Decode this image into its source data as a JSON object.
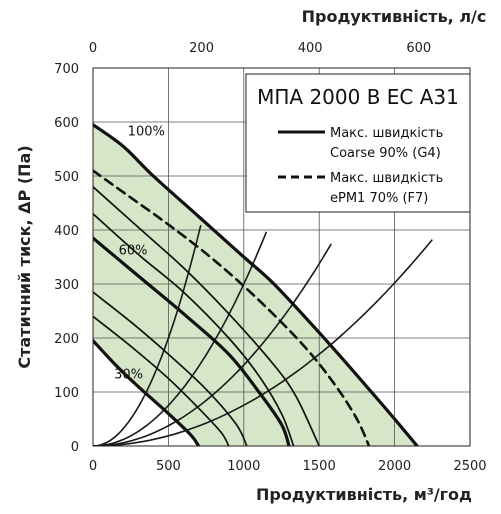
{
  "chart_data": {
    "type": "line",
    "title": "МПА 2000 В ЕС А31",
    "xlabel": "Продуктивність, м³/год",
    "x2label": "Продуктивність, л/с",
    "ylabel": "Статичний тиск, ΔP (Па)",
    "xlim": [
      0,
      2500
    ],
    "x2lim": [
      0,
      694.4
    ],
    "ylim": [
      0,
      700
    ],
    "xticks": [
      "0",
      "500",
      "1000",
      "1500",
      "2000",
      "2500"
    ],
    "x2ticks": [
      "0",
      "200",
      "400",
      "600"
    ],
    "yticks": [
      "0",
      "100",
      "200",
      "300",
      "400",
      "500",
      "600",
      "700"
    ],
    "grid": true,
    "legend_position": "top-right",
    "legend": [
      {
        "style": "solid",
        "line1": "Макс. швидкість",
        "line2": "Coarse 90% (G4)"
      },
      {
        "style": "dashed",
        "line1": "Макс. швидкість",
        "line2": "ePM1 70% (F7)"
      }
    ],
    "fan_curves": [
      {
        "label": "100%",
        "style": "bold",
        "label_at": [
          230,
          575
        ],
        "points": [
          [
            0,
            595
          ],
          [
            200,
            555
          ],
          [
            400,
            500
          ],
          [
            700,
            425
          ],
          [
            1000,
            350
          ],
          [
            1200,
            300
          ],
          [
            1500,
            210
          ],
          [
            1800,
            115
          ],
          [
            2000,
            50
          ],
          [
            2150,
            0
          ]
        ]
      },
      {
        "label": "",
        "style": "dashed",
        "label_at": null,
        "points": [
          [
            0,
            510
          ],
          [
            200,
            470
          ],
          [
            500,
            410
          ],
          [
            800,
            345
          ],
          [
            1100,
            270
          ],
          [
            1400,
            185
          ],
          [
            1600,
            115
          ],
          [
            1750,
            50
          ],
          [
            1830,
            0
          ]
        ]
      },
      {
        "label": "",
        "style": "thin",
        "points": [
          [
            0,
            480
          ],
          [
            300,
            405
          ],
          [
            600,
            330
          ],
          [
            900,
            245
          ],
          [
            1200,
            150
          ],
          [
            1350,
            90
          ],
          [
            1500,
            0
          ]
        ]
      },
      {
        "label": "",
        "style": "thin",
        "points": [
          [
            0,
            430
          ],
          [
            300,
            355
          ],
          [
            600,
            285
          ],
          [
            900,
            200
          ],
          [
            1100,
            130
          ],
          [
            1250,
            60
          ],
          [
            1330,
            0
          ]
        ]
      },
      {
        "label": "60%",
        "style": "bold",
        "label_at": [
          170,
          355
        ],
        "points": [
          [
            0,
            385
          ],
          [
            300,
            315
          ],
          [
            600,
            245
          ],
          [
            900,
            170
          ],
          [
            1100,
            100
          ],
          [
            1250,
            40
          ],
          [
            1300,
            0
          ]
        ]
      },
      {
        "label": "",
        "style": "thin",
        "points": [
          [
            0,
            285
          ],
          [
            250,
            230
          ],
          [
            500,
            170
          ],
          [
            750,
            105
          ],
          [
            950,
            40
          ],
          [
            1020,
            0
          ]
        ]
      },
      {
        "label": "",
        "style": "thin",
        "points": [
          [
            0,
            240
          ],
          [
            250,
            185
          ],
          [
            500,
            125
          ],
          [
            700,
            70
          ],
          [
            850,
            25
          ],
          [
            900,
            0
          ]
        ]
      },
      {
        "label": "30%",
        "style": "bold",
        "label_at": [
          140,
          125
        ],
        "points": [
          [
            0,
            195
          ],
          [
            150,
            150
          ],
          [
            300,
            110
          ],
          [
            500,
            60
          ],
          [
            650,
            20
          ],
          [
            700,
            0
          ]
        ]
      }
    ],
    "system_curves": [
      {
        "k": 7.55e-05,
        "x_end": 2250
      },
      {
        "k": 0.00015,
        "x_end": 1580
      },
      {
        "k": 0.0003,
        "x_end": 1150
      },
      {
        "k": 0.0008,
        "x_end": 715
      }
    ]
  }
}
